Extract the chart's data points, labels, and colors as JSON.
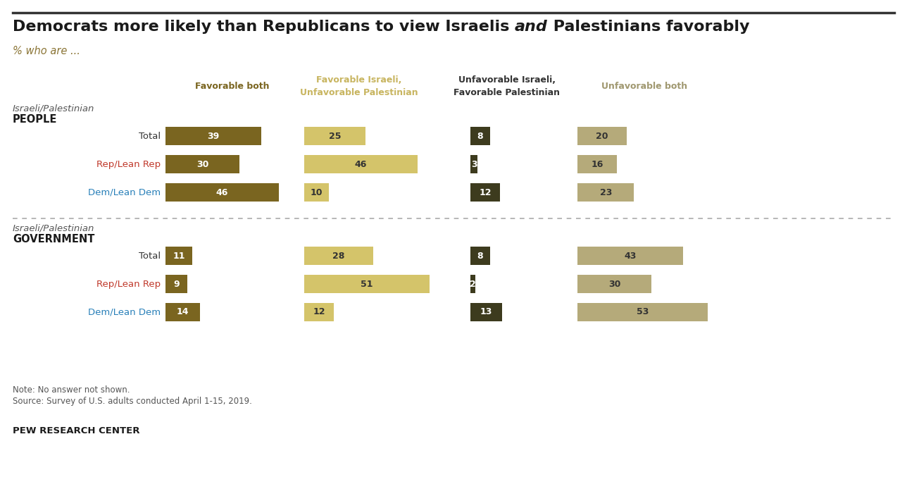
{
  "title_part1": "Democrats more likely than Republicans to view Israelis ",
  "title_italic": "and",
  "title_part2": " Palestinians favorably",
  "subtitle": "% who are ...",
  "col_headers": [
    [
      "Favorable both",
      false
    ],
    [
      "Favorable Israeli,",
      true,
      "Unfavorable Palestinian"
    ],
    [
      "Unfavorable Israeli,",
      false,
      "Favorable Palestinian"
    ],
    [
      "Unfavorable both",
      false
    ]
  ],
  "col_header_colors": [
    "#7a6520",
    "#c8b560",
    "#333333",
    "#a09870"
  ],
  "section1_label1": "Israeli/Palestinian",
  "section1_label2": "PEOPLE",
  "section2_label1": "Israeli/Palestinian",
  "section2_label2": "GOVERNMENT",
  "row_labels": [
    "Total",
    "Rep/Lean Rep",
    "Dem/Lean Dem"
  ],
  "row_label_colors": [
    "#333333",
    "#c0392b",
    "#2980b9"
  ],
  "people_data": [
    [
      39,
      25,
      8,
      20
    ],
    [
      30,
      46,
      3,
      16
    ],
    [
      46,
      10,
      12,
      23
    ]
  ],
  "government_data": [
    [
      11,
      28,
      8,
      43
    ],
    [
      9,
      51,
      2,
      30
    ],
    [
      14,
      12,
      13,
      53
    ]
  ],
  "bar_colors": [
    "#7a6520",
    "#d4c46a",
    "#3d3b1e",
    "#b5aa7a"
  ],
  "col_max_values": [
    55,
    55,
    55,
    55
  ],
  "note": "Note: No answer not shown.",
  "source": "Source: Survey of U.S. adults conducted April 1-15, 2019.",
  "footer": "PEW RESEARCH CENTER",
  "bg_color": "#ffffff"
}
